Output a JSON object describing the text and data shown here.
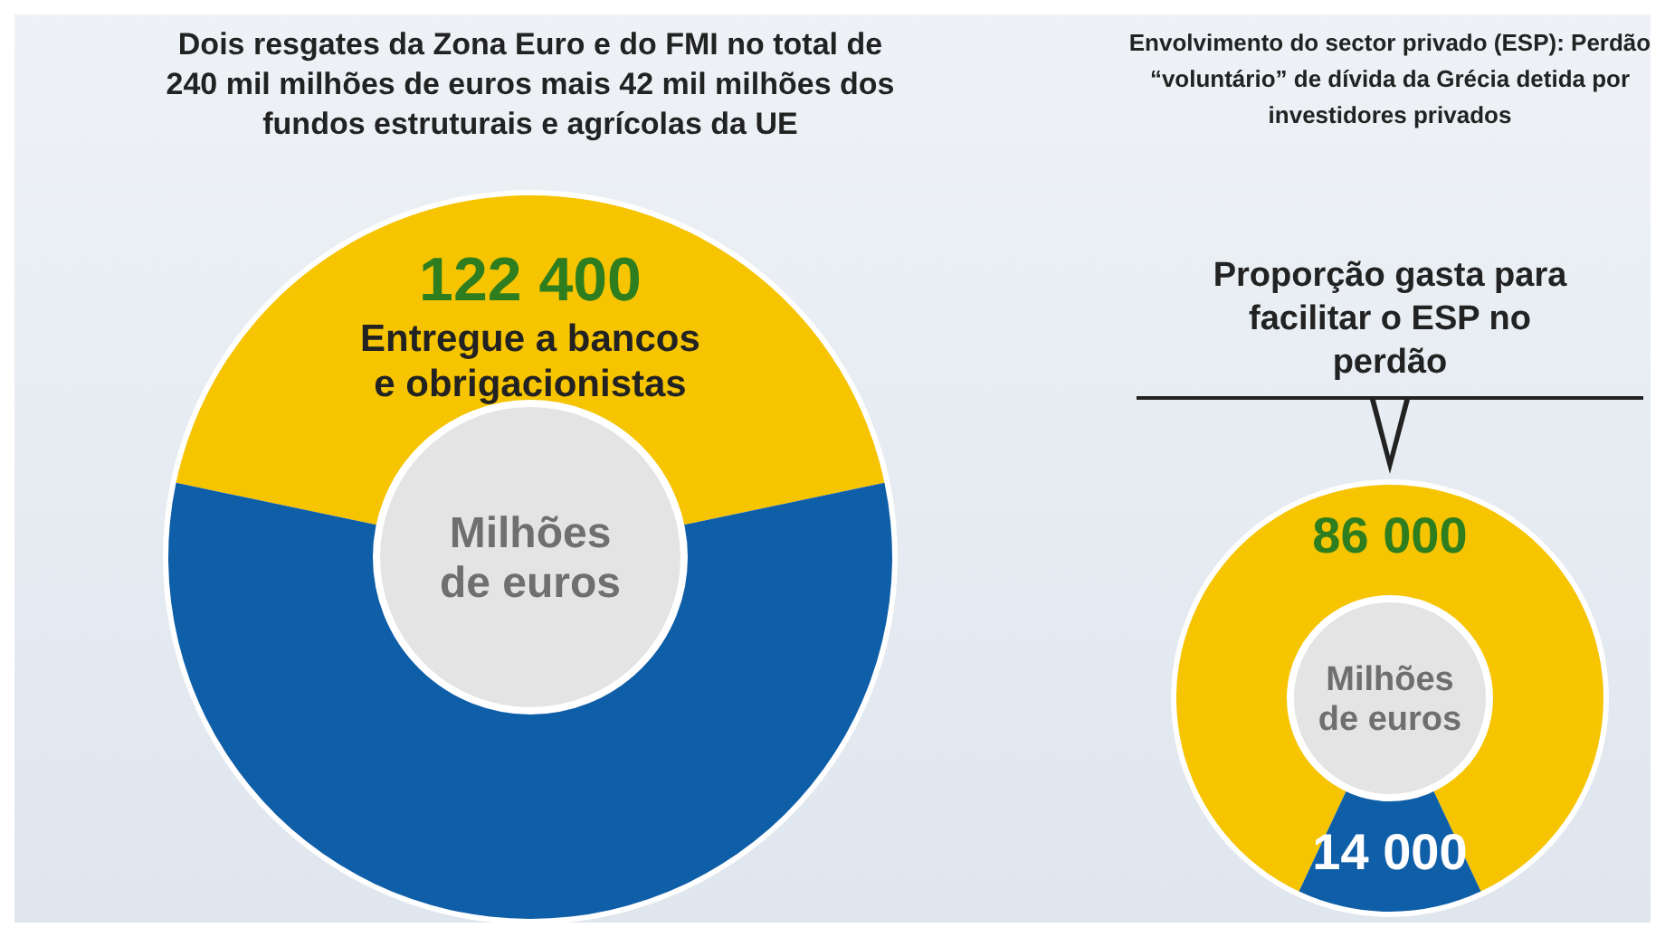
{
  "chart_data": [
    {
      "type": "donut",
      "title": "Dois resgates da Zona Euro e do FMI no total de 240 mil milhões de euros mais 42 mil milhões dos fundos estruturais e agrícolas da UE",
      "categories": [
        "Entregue a bancos e obrigacionistas",
        null
      ],
      "values": [
        122400,
        159600
      ],
      "colors": [
        "#f6c400",
        "#0f5ea8"
      ],
      "value_labels": [
        "122 400",
        null
      ],
      "annotations": [
        "Milhões de euros"
      ]
    },
    {
      "type": "donut",
      "title": "Envolvimento do sector privado (ESP): Perdão “voluntário” de dívida da Grécia detida por investidores privados",
      "categories": [
        null,
        null
      ],
      "values": [
        86000,
        14000
      ],
      "colors": [
        "#f6c400",
        "#0f5ea8"
      ],
      "data_labels": true,
      "annotations": [
        "Proporção gasta para facilitar o ESP no perdão",
        "Milhões de euros"
      ]
    }
  ]
}
